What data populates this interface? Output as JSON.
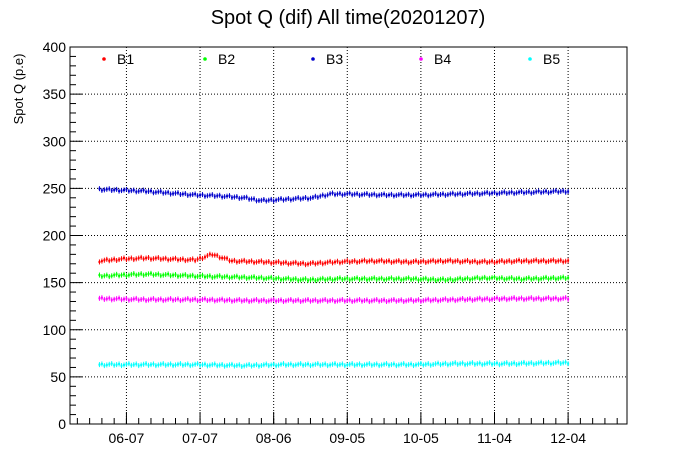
{
  "chart_data": {
    "type": "scatter",
    "title": "Spot Q (dif) All time(20201207)",
    "xlabel": "",
    "ylabel": "Spot Q (p.e)",
    "ylim": [
      0,
      400
    ],
    "yticks": [
      "0",
      "50",
      "100",
      "150",
      "200",
      "250",
      "300",
      "350",
      "400"
    ],
    "xlim": [
      "2020-05-15",
      "2020-12-28"
    ],
    "xticks": [
      {
        "date": "2020-06-07",
        "label": "06-07"
      },
      {
        "date": "2020-07-07",
        "label": "07-07"
      },
      {
        "date": "2020-08-06",
        "label": "08-06"
      },
      {
        "date": "2020-09-05",
        "label": "09-05"
      },
      {
        "date": "2020-10-05",
        "label": "10-05"
      },
      {
        "date": "2020-11-04",
        "label": "11-04"
      },
      {
        "date": "2020-12-04",
        "label": "12-04"
      }
    ],
    "grid": true,
    "legend_placement": "top",
    "series": [
      {
        "name": "B1",
        "color": "#ff0000",
        "x": [
          "2020-05-27",
          "2020-06-05",
          "2020-06-15",
          "2020-06-25",
          "2020-07-05",
          "2020-07-12",
          "2020-07-20",
          "2020-08-01",
          "2020-08-10",
          "2020-08-20",
          "2020-09-01",
          "2020-09-15",
          "2020-10-01",
          "2020-10-15",
          "2020-11-01",
          "2020-11-15",
          "2020-12-04"
        ],
        "values": [
          173,
          175,
          176,
          175,
          174,
          180,
          173,
          172,
          171,
          170,
          172,
          173,
          172,
          173,
          172,
          173,
          173
        ]
      },
      {
        "name": "B2",
        "color": "#00ff00",
        "x": [
          "2020-05-27",
          "2020-06-05",
          "2020-06-15",
          "2020-06-25",
          "2020-07-05",
          "2020-07-20",
          "2020-08-01",
          "2020-08-10",
          "2020-08-20",
          "2020-09-01",
          "2020-09-15",
          "2020-10-01",
          "2020-10-15",
          "2020-11-01",
          "2020-11-15",
          "2020-12-04"
        ],
        "values": [
          157,
          158,
          159,
          158,
          157,
          156,
          155,
          154,
          153,
          154,
          154,
          154,
          153,
          155,
          154,
          155
        ]
      },
      {
        "name": "B3",
        "color": "#0000cc",
        "x": [
          "2020-05-27",
          "2020-06-05",
          "2020-06-15",
          "2020-06-25",
          "2020-07-05",
          "2020-07-15",
          "2020-07-25",
          "2020-08-01",
          "2020-08-08",
          "2020-08-15",
          "2020-08-22",
          "2020-08-29",
          "2020-09-05",
          "2020-09-20",
          "2020-10-05",
          "2020-10-20",
          "2020-11-04",
          "2020-11-20",
          "2020-12-04"
        ],
        "values": [
          249,
          248,
          247,
          245,
          243,
          242,
          240,
          237,
          238,
          239,
          240,
          244,
          244,
          243,
          243,
          244,
          245,
          246,
          247
        ]
      },
      {
        "name": "B4",
        "color": "#ff00ff",
        "x": [
          "2020-05-27",
          "2020-06-15",
          "2020-07-05",
          "2020-07-25",
          "2020-08-10",
          "2020-08-25",
          "2020-09-10",
          "2020-10-01",
          "2020-10-20",
          "2020-11-10",
          "2020-12-04"
        ],
        "values": [
          133,
          132,
          132,
          131,
          131,
          131,
          131,
          131,
          132,
          133,
          133
        ]
      },
      {
        "name": "B5",
        "color": "#00ffff",
        "x": [
          "2020-05-27",
          "2020-06-15",
          "2020-07-05",
          "2020-07-25",
          "2020-08-10",
          "2020-08-25",
          "2020-09-10",
          "2020-10-01",
          "2020-10-20",
          "2020-11-10",
          "2020-12-04"
        ],
        "values": [
          63,
          63,
          63,
          62,
          63,
          63,
          63,
          63,
          64,
          64,
          65
        ]
      }
    ]
  }
}
